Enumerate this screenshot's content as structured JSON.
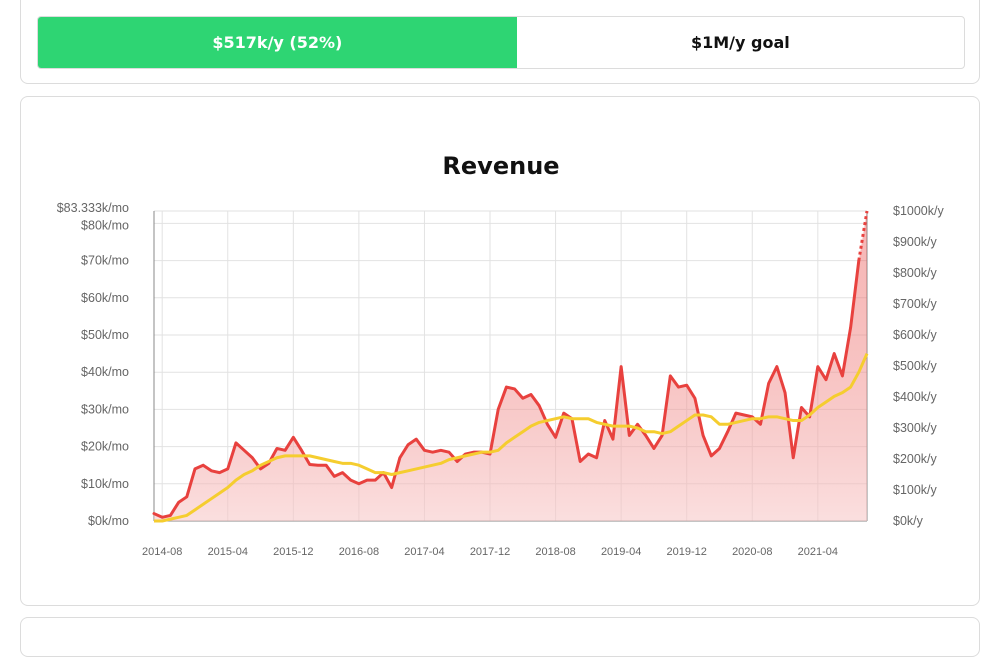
{
  "progress": {
    "current_label": "$517k/y (52%)",
    "goal_label": "$1M/y goal",
    "fraction": 0.517,
    "fill_color": "#2ed573"
  },
  "chart_data": {
    "type": "line",
    "title": "Revenue",
    "x_tick_labels": [
      "2014-08",
      "2015-04",
      "2015-12",
      "2016-08",
      "2017-04",
      "2017-12",
      "2018-08",
      "2019-04",
      "2019-12",
      "2020-08",
      "2021-04"
    ],
    "y_left_tick_labels": [
      "$0k/mo",
      "$10k/mo",
      "$20k/mo",
      "$30k/mo",
      "$40k/mo",
      "$50k/mo",
      "$60k/mo",
      "$70k/mo",
      "$80k/mo",
      "$83.333k/mo"
    ],
    "y_left_ticks": [
      0,
      10,
      20,
      30,
      40,
      50,
      60,
      70,
      80,
      83.333
    ],
    "y_right_tick_labels": [
      "$0k/y",
      "$100k/y",
      "$200k/y",
      "$300k/y",
      "$400k/y",
      "$500k/y",
      "$600k/y",
      "$700k/y",
      "$800k/y",
      "$900k/y",
      "$1000k/y"
    ],
    "ylim": [
      0,
      83.333
    ],
    "grid": true,
    "colors": {
      "monthly": "#e8413e",
      "fill": "#f7c9c9",
      "average": "#f5cd2f"
    },
    "series": [
      {
        "values": [
          2,
          1,
          1.5,
          5,
          6.5,
          14,
          15,
          13.5,
          13,
          14,
          21,
          19,
          17,
          14,
          15.5,
          19.5,
          19,
          22.5,
          19,
          15.2,
          15,
          15,
          12,
          13,
          11,
          10,
          11,
          11,
          13,
          9,
          17,
          20.5,
          22,
          19,
          18.5,
          19,
          18.5,
          16,
          18,
          18.5,
          18.5,
          18,
          30,
          36,
          35.5,
          33,
          34,
          31,
          26,
          22.5,
          29,
          27.5,
          16,
          18,
          17,
          27,
          22,
          41.5,
          23,
          26,
          23,
          19.5,
          23,
          39,
          36,
          36.5,
          33,
          23,
          17.5,
          19.5,
          24,
          29,
          28.5,
          28,
          26,
          37,
          41.5,
          34.5,
          17,
          30.5,
          28,
          41.5,
          38,
          45,
          39,
          52,
          70,
          83.333
        ],
        "projection": [
          70,
          83.333
        ]
      },
      {
        "values": [
          0,
          0,
          0.5,
          1,
          1.5,
          3,
          4.5,
          6,
          7.5,
          9,
          11,
          12.5,
          13.5,
          15,
          16,
          17,
          17.5,
          17.5,
          17.5,
          17.5,
          17,
          16.5,
          16,
          15.5,
          15.5,
          15,
          14,
          13,
          13,
          12.5,
          13,
          13.5,
          14,
          14.5,
          15,
          15.5,
          16.5,
          17,
          17.5,
          18,
          18.5,
          18.5,
          19,
          21,
          22.5,
          24,
          25.5,
          26.5,
          27,
          27.5,
          28,
          27.5,
          27.5,
          27.5,
          26.5,
          26,
          25.5,
          25.5,
          25.5,
          25,
          24,
          24,
          23.5,
          24,
          25.5,
          27,
          28.5,
          28.5,
          28,
          26,
          26,
          26.5,
          27,
          27.5,
          27.5,
          28,
          28,
          27.5,
          27,
          27,
          28.5,
          30.5,
          32,
          33.5,
          34.5,
          36,
          40,
          45
        ]
      }
    ]
  }
}
